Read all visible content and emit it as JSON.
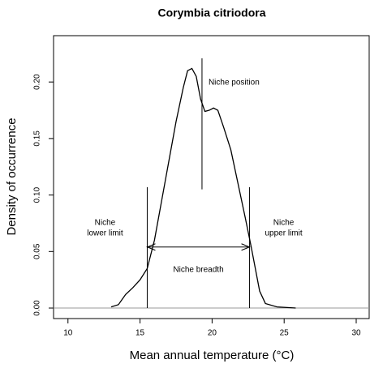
{
  "chart_data": {
    "type": "line",
    "title": "Corymbia citriodora",
    "x_label": "Mean annual temperature (°C)",
    "y_label": "Density of occurrence",
    "x": [
      13,
      13.5,
      14,
      14.5,
      15,
      15.5,
      16,
      16.5,
      17,
      17.5,
      18,
      18.3,
      18.6,
      18.9,
      19.2,
      19.5,
      19.8,
      20.1,
      20.4,
      20.8,
      21.3,
      21.8,
      22.3,
      22.7,
      23,
      23.3,
      23.7,
      24.5,
      25.8
    ],
    "values": [
      0.001,
      0.003,
      0.012,
      0.018,
      0.025,
      0.035,
      0.06,
      0.095,
      0.13,
      0.165,
      0.195,
      0.21,
      0.212,
      0.205,
      0.185,
      0.174,
      0.175,
      0.177,
      0.175,
      0.16,
      0.14,
      0.11,
      0.08,
      0.055,
      0.035,
      0.015,
      0.004,
      0.001,
      0
    ],
    "color": "#000000",
    "xlim": [
      9,
      30.9
    ],
    "ylim": [
      -0.0093,
      0.241
    ],
    "xticks": [
      10,
      15,
      20,
      25,
      30
    ],
    "yticks": [
      {
        "value": 0,
        "label": "0.00"
      },
      {
        "value": 0.05,
        "label": "0.05"
      },
      {
        "value": 0.1,
        "label": "0.10"
      },
      {
        "value": 0.15,
        "label": "0.15"
      },
      {
        "value": 0.2,
        "label": "0.20"
      }
    ],
    "niche": {
      "lower_limit": {
        "x": 15.5,
        "y": [
          0,
          0.107
        ],
        "label": [
          "Niche",
          "lower limit"
        ]
      },
      "upper_limit": {
        "x": 22.6,
        "y": [
          0,
          0.107
        ],
        "label": [
          "Niche",
          "upper limit"
        ]
      },
      "position": {
        "x": 19.3,
        "y": [
          0.105,
          0.221
        ],
        "label": "Niche position"
      },
      "breadth": {
        "y": 0.054,
        "label": "Niche breadth"
      }
    }
  }
}
